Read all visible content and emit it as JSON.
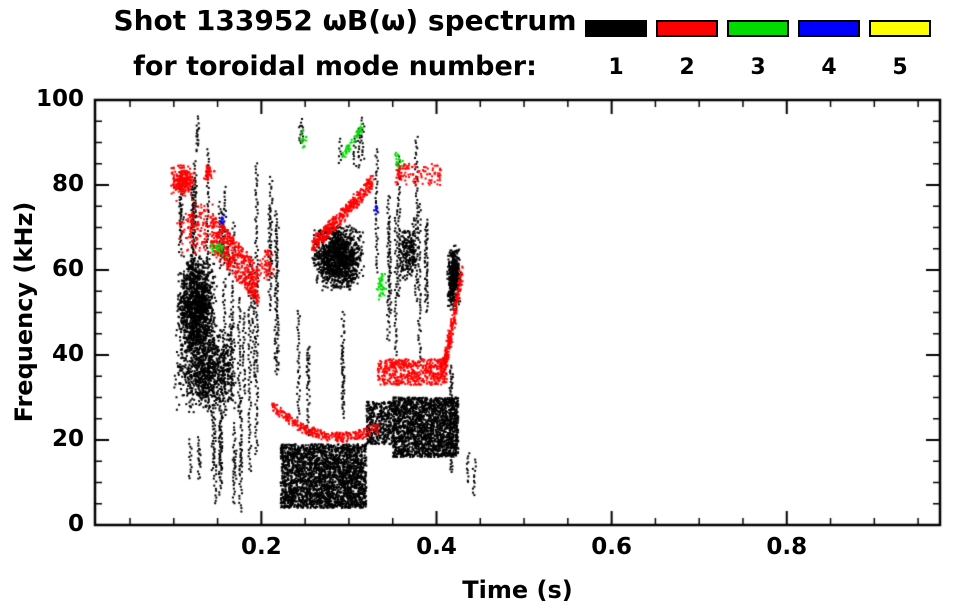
{
  "title": {
    "line1": "Shot 133952 ωB(ω) spectrum",
    "line2": "for toroidal mode number:"
  },
  "legend": {
    "modes": [
      {
        "label": "1",
        "color": "#000000"
      },
      {
        "label": "2",
        "color": "#ff0000"
      },
      {
        "label": "3",
        "color": "#00dc00"
      },
      {
        "label": "4",
        "color": "#0000ff"
      },
      {
        "label": "5",
        "color": "#ffff00"
      }
    ]
  },
  "chart_data": {
    "type": "scatter",
    "title": "Shot 133952 ωB(ω) spectrum for toroidal mode number",
    "xlabel": "Time (s)",
    "ylabel": "Frequency (kHz)",
    "xlim": [
      0.01,
      0.975
    ],
    "ylim": [
      0,
      100
    ],
    "grid": false,
    "legend_position": "top-right",
    "xticks": {
      "values": [
        0.2,
        0.4,
        0.6,
        0.8
      ],
      "labels": [
        "0.2",
        "0.4",
        "0.6",
        "0.8"
      ],
      "minor_step": 0.05
    },
    "yticks": {
      "values": [
        0,
        20,
        40,
        60,
        80,
        100
      ],
      "labels": [
        "0",
        "20",
        "40",
        "60",
        "80",
        "100"
      ],
      "minor_step": 5
    },
    "series": [
      {
        "name": "mode 1",
        "color": "#000000",
        "clusters": [
          {
            "type": "blob",
            "t": [
              0.103,
              0.15
            ],
            "f": [
              40,
              64
            ],
            "n": 1400
          },
          {
            "type": "blob",
            "t": [
              0.1,
              0.175
            ],
            "f": [
              26,
              48
            ],
            "n": 1000
          },
          {
            "type": "vstreaks",
            "t": [
              0.105,
              0.158
            ],
            "f": [
              58,
              90
            ],
            "k": 9
          },
          {
            "type": "vstreaks",
            "t": [
              0.125,
              0.145
            ],
            "f": [
              86,
              98
            ],
            "k": 2
          },
          {
            "type": "vstreaks",
            "t": [
              0.115,
              0.185
            ],
            "f": [
              3,
              30
            ],
            "k": 12
          },
          {
            "type": "vstreaks",
            "t": [
              0.155,
              0.185
            ],
            "f": [
              25,
              62
            ],
            "k": 5
          },
          {
            "type": "vstreaks",
            "t": [
              0.155,
              0.18
            ],
            "f": [
              55,
              80
            ],
            "k": 4
          },
          {
            "type": "vstreaks",
            "t": [
              0.183,
              0.196
            ],
            "f": [
              5,
              88
            ],
            "k": 3
          },
          {
            "type": "vstreaks",
            "t": [
              0.205,
              0.222
            ],
            "f": [
              30,
              97
            ],
            "k": 4
          },
          {
            "type": "band",
            "t": [
              0.222,
              0.32
            ],
            "f": [
              4,
              19
            ],
            "n": 2600
          },
          {
            "type": "blob",
            "t": [
              0.258,
              0.318
            ],
            "f": [
              55,
              71
            ],
            "n": 1300
          },
          {
            "type": "vstreaks",
            "t": [
              0.24,
              0.312
            ],
            "f": [
              20,
              55
            ],
            "k": 5
          },
          {
            "type": "vstreaks",
            "t": [
              0.287,
              0.32
            ],
            "f": [
              84,
              97
            ],
            "k": 4
          },
          {
            "type": "vstreaks",
            "t": [
              0.24,
              0.252
            ],
            "f": [
              86,
              96
            ],
            "k": 2
          },
          {
            "type": "band",
            "t": [
              0.32,
              0.35
            ],
            "f": [
              19,
              29
            ],
            "n": 380
          },
          {
            "type": "band",
            "t": [
              0.35,
              0.425
            ],
            "f": [
              16,
              30
            ],
            "n": 1900
          },
          {
            "type": "vstreaks",
            "t": [
              0.33,
              0.412
            ],
            "f": [
              35,
              93
            ],
            "k": 10
          },
          {
            "type": "blob",
            "t": [
              0.356,
              0.378
            ],
            "f": [
              57,
              71
            ],
            "n": 200
          },
          {
            "type": "blob",
            "t": [
              0.412,
              0.428
            ],
            "f": [
              50,
              66
            ],
            "n": 430
          },
          {
            "type": "vstreaks",
            "t": [
              0.415,
              0.426
            ],
            "f": [
              2,
              50
            ],
            "k": 2
          },
          {
            "type": "vstreaks",
            "t": [
              0.432,
              0.452
            ],
            "f": [
              3,
              20
            ],
            "k": 2
          }
        ]
      },
      {
        "name": "mode 2",
        "color": "#ff0000",
        "clusters": [
          {
            "type": "blob",
            "t": [
              0.096,
              0.125
            ],
            "f": [
              77,
              85
            ],
            "n": 260
          },
          {
            "type": "blob",
            "t": [
              0.1,
              0.15
            ],
            "f": [
              62,
              77
            ],
            "n": 150
          },
          {
            "type": "arc",
            "t": [
              0.143,
              0.197
            ],
            "f": [
              69,
              56
            ],
            "fm": 63,
            "w": 9,
            "n": 520
          },
          {
            "type": "blob",
            "t": [
              0.197,
              0.216
            ],
            "f": [
              57,
              66
            ],
            "n": 60
          },
          {
            "type": "arc",
            "t": [
              0.258,
              0.327
            ],
            "f": [
              66,
              81
            ],
            "fm": 72,
            "w": 3.5,
            "n": 380
          },
          {
            "type": "arc",
            "t": [
              0.213,
              0.333
            ],
            "f": [
              28,
              23
            ],
            "fm": 16.5,
            "w": 2.2,
            "n": 330
          },
          {
            "type": "band",
            "t": [
              0.333,
              0.412
            ],
            "f": [
              33,
              39
            ],
            "n": 520
          },
          {
            "type": "arc",
            "t": [
              0.408,
              0.428
            ],
            "f": [
              37,
              59
            ],
            "fm": 45,
            "w": 4,
            "n": 240
          },
          {
            "type": "band",
            "t": [
              0.353,
              0.405
            ],
            "f": [
              80,
              85
            ],
            "n": 110
          },
          {
            "type": "blob",
            "t": [
              0.133,
              0.147
            ],
            "f": [
              81,
              85
            ],
            "n": 40
          }
        ]
      },
      {
        "name": "mode 3",
        "color": "#00dc00",
        "clusters": [
          {
            "type": "arc",
            "t": [
              0.292,
              0.316
            ],
            "f": [
              86.5,
              94
            ],
            "fm": 90,
            "w": 1.5,
            "n": 55
          },
          {
            "type": "blob",
            "t": [
              0.138,
              0.163
            ],
            "f": [
              63,
              67
            ],
            "n": 30
          },
          {
            "type": "blob",
            "t": [
              0.33,
              0.344
            ],
            "f": [
              52,
              61
            ],
            "n": 40
          },
          {
            "type": "blob",
            "t": [
              0.35,
              0.362
            ],
            "f": [
              83,
              88
            ],
            "n": 16
          },
          {
            "type": "blob",
            "t": [
              0.243,
              0.252
            ],
            "f": [
              87,
              94
            ],
            "n": 14
          }
        ]
      },
      {
        "name": "mode 4",
        "color": "#0000ff",
        "clusters": [
          {
            "type": "blob",
            "t": [
              0.151,
              0.159
            ],
            "f": [
              70,
              73
            ],
            "n": 10
          },
          {
            "type": "blob",
            "t": [
              0.327,
              0.335
            ],
            "f": [
              73,
              76
            ],
            "n": 7
          }
        ]
      },
      {
        "name": "mode 5",
        "color": "#ffff00",
        "clusters": []
      }
    ]
  }
}
